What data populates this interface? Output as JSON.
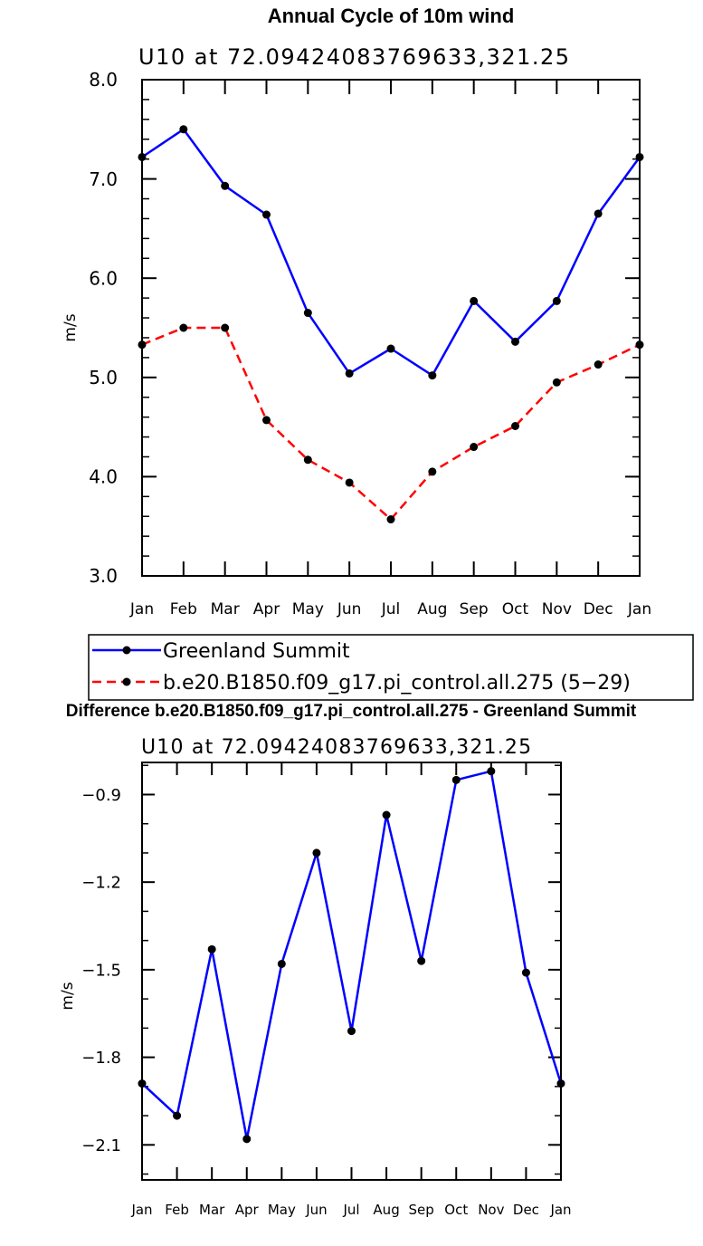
{
  "chart_data": [
    {
      "type": "line",
      "title": "Annual Cycle of 10m wind",
      "subtitle": "U10 at 72.09424083769633,321.25",
      "xlabel": "",
      "ylabel": "m/s",
      "categories": [
        "Jan",
        "Feb",
        "Mar",
        "Apr",
        "May",
        "Jun",
        "Jul",
        "Aug",
        "Sep",
        "Oct",
        "Nov",
        "Dec",
        "Jan"
      ],
      "ylim": [
        3.0,
        8.0
      ],
      "yticks": [
        3.0,
        4.0,
        5.0,
        6.0,
        7.0,
        8.0
      ],
      "ytick_labels": [
        "3.0",
        "4.0",
        "5.0",
        "6.0",
        "7.0",
        "8.0"
      ],
      "series": [
        {
          "name": "Greenland Summit",
          "color": "#0000ff",
          "dashed": false,
          "values": [
            7.22,
            7.5,
            6.93,
            6.64,
            5.65,
            5.04,
            5.29,
            5.02,
            5.77,
            5.36,
            5.77,
            6.65,
            7.22
          ]
        },
        {
          "name": "b.e20.B1850.f09_g17.pi_control.all.275 (5−29)",
          "color": "#ff0000",
          "dashed": true,
          "values": [
            5.33,
            5.5,
            5.5,
            4.57,
            4.17,
            3.94,
            3.57,
            4.05,
            4.3,
            4.51,
            4.95,
            5.13,
            5.33
          ]
        }
      ],
      "legend": "below"
    },
    {
      "type": "line",
      "title": "Difference b.e20.B1850.f09_g17.pi_control.all.275 - Greenland Summit",
      "subtitle": "U10 at 72.09424083769633,321.25",
      "xlabel": "",
      "ylabel": "m/s",
      "categories": [
        "Jan",
        "Feb",
        "Mar",
        "Apr",
        "May",
        "Jun",
        "Jul",
        "Aug",
        "Sep",
        "Oct",
        "Nov",
        "Dec",
        "Jan"
      ],
      "ylim": [
        -2.22,
        -0.79
      ],
      "yticks": [
        -2.1,
        -1.8,
        -1.5,
        -1.2,
        -0.9
      ],
      "ytick_labels": [
        "−2.1",
        "−1.8",
        "−1.5",
        "−1.2",
        "−0.9"
      ],
      "series": [
        {
          "name": "Difference",
          "color": "#0000ff",
          "dashed": false,
          "values": [
            -1.89,
            -2.0,
            -1.43,
            -2.08,
            -1.48,
            -1.1,
            -1.71,
            -0.97,
            -1.47,
            -0.85,
            -0.82,
            -1.51,
            -1.89
          ]
        }
      ]
    }
  ]
}
